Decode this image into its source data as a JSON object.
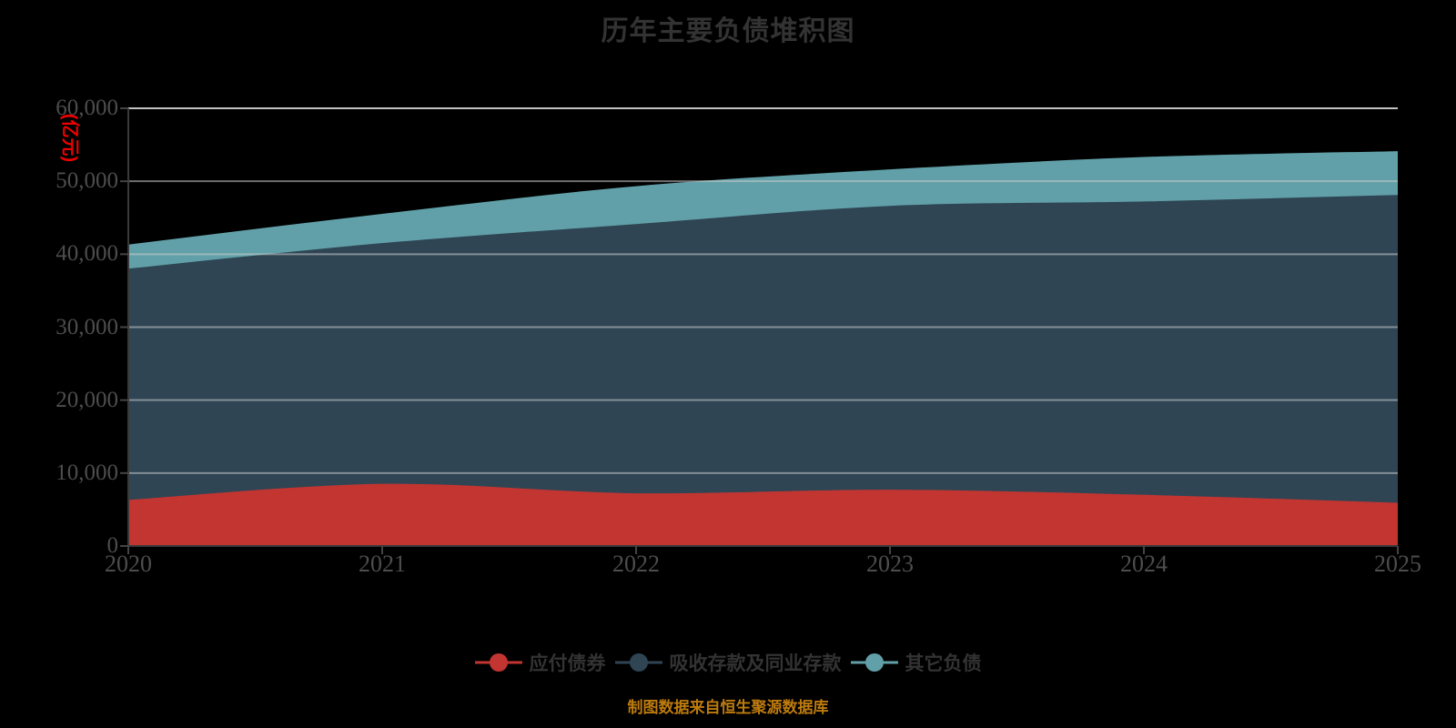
{
  "title": {
    "text": "历年主要负债堆积图"
  },
  "y_axis": {
    "name": "(亿元)",
    "name_color": "#ee0000",
    "tick_labels": [
      "60,000",
      "50,000",
      "40,000",
      "30,000",
      "20,000",
      "10,000",
      "0"
    ],
    "min": 0,
    "max": 60000,
    "interval": 10000
  },
  "x_axis": {
    "tick_labels": [
      "2020",
      "2021",
      "2022",
      "2023",
      "2024",
      "2025"
    ]
  },
  "legend": {
    "items": [
      {
        "label": "应付债券",
        "color": "#c23531",
        "marker": "line-circle-icon"
      },
      {
        "label": "吸收存款及同业存款",
        "color": "#2f4554",
        "marker": "line-circle-icon"
      },
      {
        "label": "其它负债",
        "color": "#61a0a8",
        "marker": "line-circle-icon"
      }
    ]
  },
  "footer": {
    "text": "制图数据来自恒生聚源数据库",
    "color": "#bd7b0e"
  },
  "colors": {
    "background": "#000000",
    "title": "#333333",
    "axis_label": "#4d4d4d",
    "axis_line": "#3a3a3a",
    "gridline": "#cccccc"
  },
  "chart_data": {
    "type": "area",
    "stacked": true,
    "smooth": true,
    "title": "历年主要负债堆积图",
    "ylabel": "(亿元)",
    "xlabel": "",
    "x": [
      2020,
      2021,
      2022,
      2023,
      2024,
      2025
    ],
    "series": [
      {
        "name": "应付债券",
        "color": "#c23531",
        "values": [
          6200,
          8400,
          7100,
          7600,
          6900,
          5800
        ]
      },
      {
        "name": "吸收存款及同业存款",
        "color": "#2f4554",
        "values": [
          31700,
          33000,
          36900,
          38900,
          40200,
          42200
        ]
      },
      {
        "name": "其它负债",
        "color": "#61a0a8",
        "values": [
          3300,
          4000,
          5200,
          5000,
          6100,
          6000
        ]
      }
    ],
    "stack_totals": [
      41200,
      45400,
      49200,
      51500,
      53200,
      54000
    ],
    "ylim": [
      0,
      60000
    ],
    "grid": true,
    "legend_position": "bottom"
  }
}
